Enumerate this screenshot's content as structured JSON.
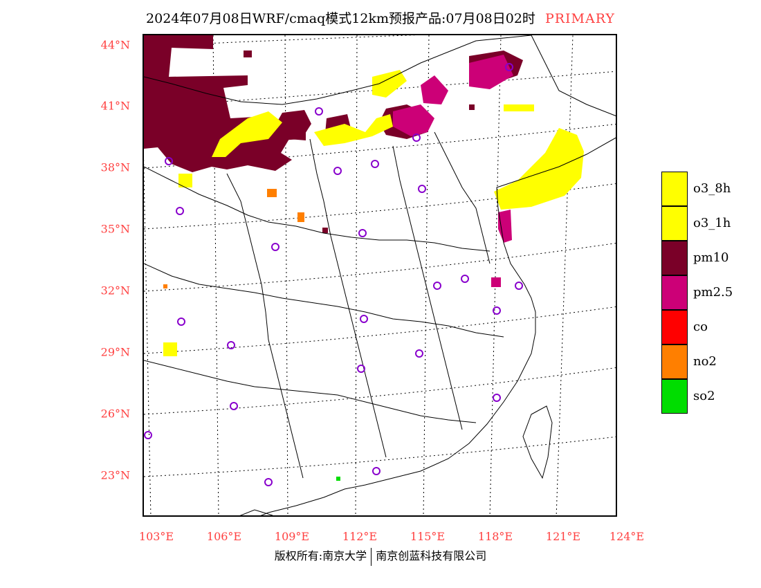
{
  "title": {
    "text": "2024年07月08日WRF/cmaq模式12km预报产品:07月08日02时",
    "tag": "PRIMARY"
  },
  "map": {
    "lat_labels": [
      "44°N",
      "41°N",
      "38°N",
      "35°N",
      "32°N",
      "29°N",
      "26°N",
      "23°N"
    ],
    "lon_labels": [
      "103°E",
      "106°E",
      "109°E",
      "112°E",
      "115°E",
      "118°E",
      "121°E",
      "124°E"
    ],
    "colors": {
      "o3": "#ffff00",
      "pm10": "#7a0028",
      "pm25": "#cc0077",
      "co": "#ff0000",
      "no2": "#ff7f00",
      "so2": "#00dd00",
      "station": "#8800cc",
      "label": "#ff4040"
    }
  },
  "legend": [
    {
      "label": "o3_8h",
      "color": "#ffff00"
    },
    {
      "label": "o3_1h",
      "color": "#ffff00"
    },
    {
      "label": "pm10",
      "color": "#7a0028"
    },
    {
      "label": "pm2.5",
      "color": "#cc0077"
    },
    {
      "label": "co",
      "color": "#ff0000"
    },
    {
      "label": "no2",
      "color": "#ff7f00"
    },
    {
      "label": "so2",
      "color": "#00dd00"
    }
  ],
  "footer": {
    "left": "版权所有:南京大学",
    "right": "南京创蓝科技有限公司"
  }
}
